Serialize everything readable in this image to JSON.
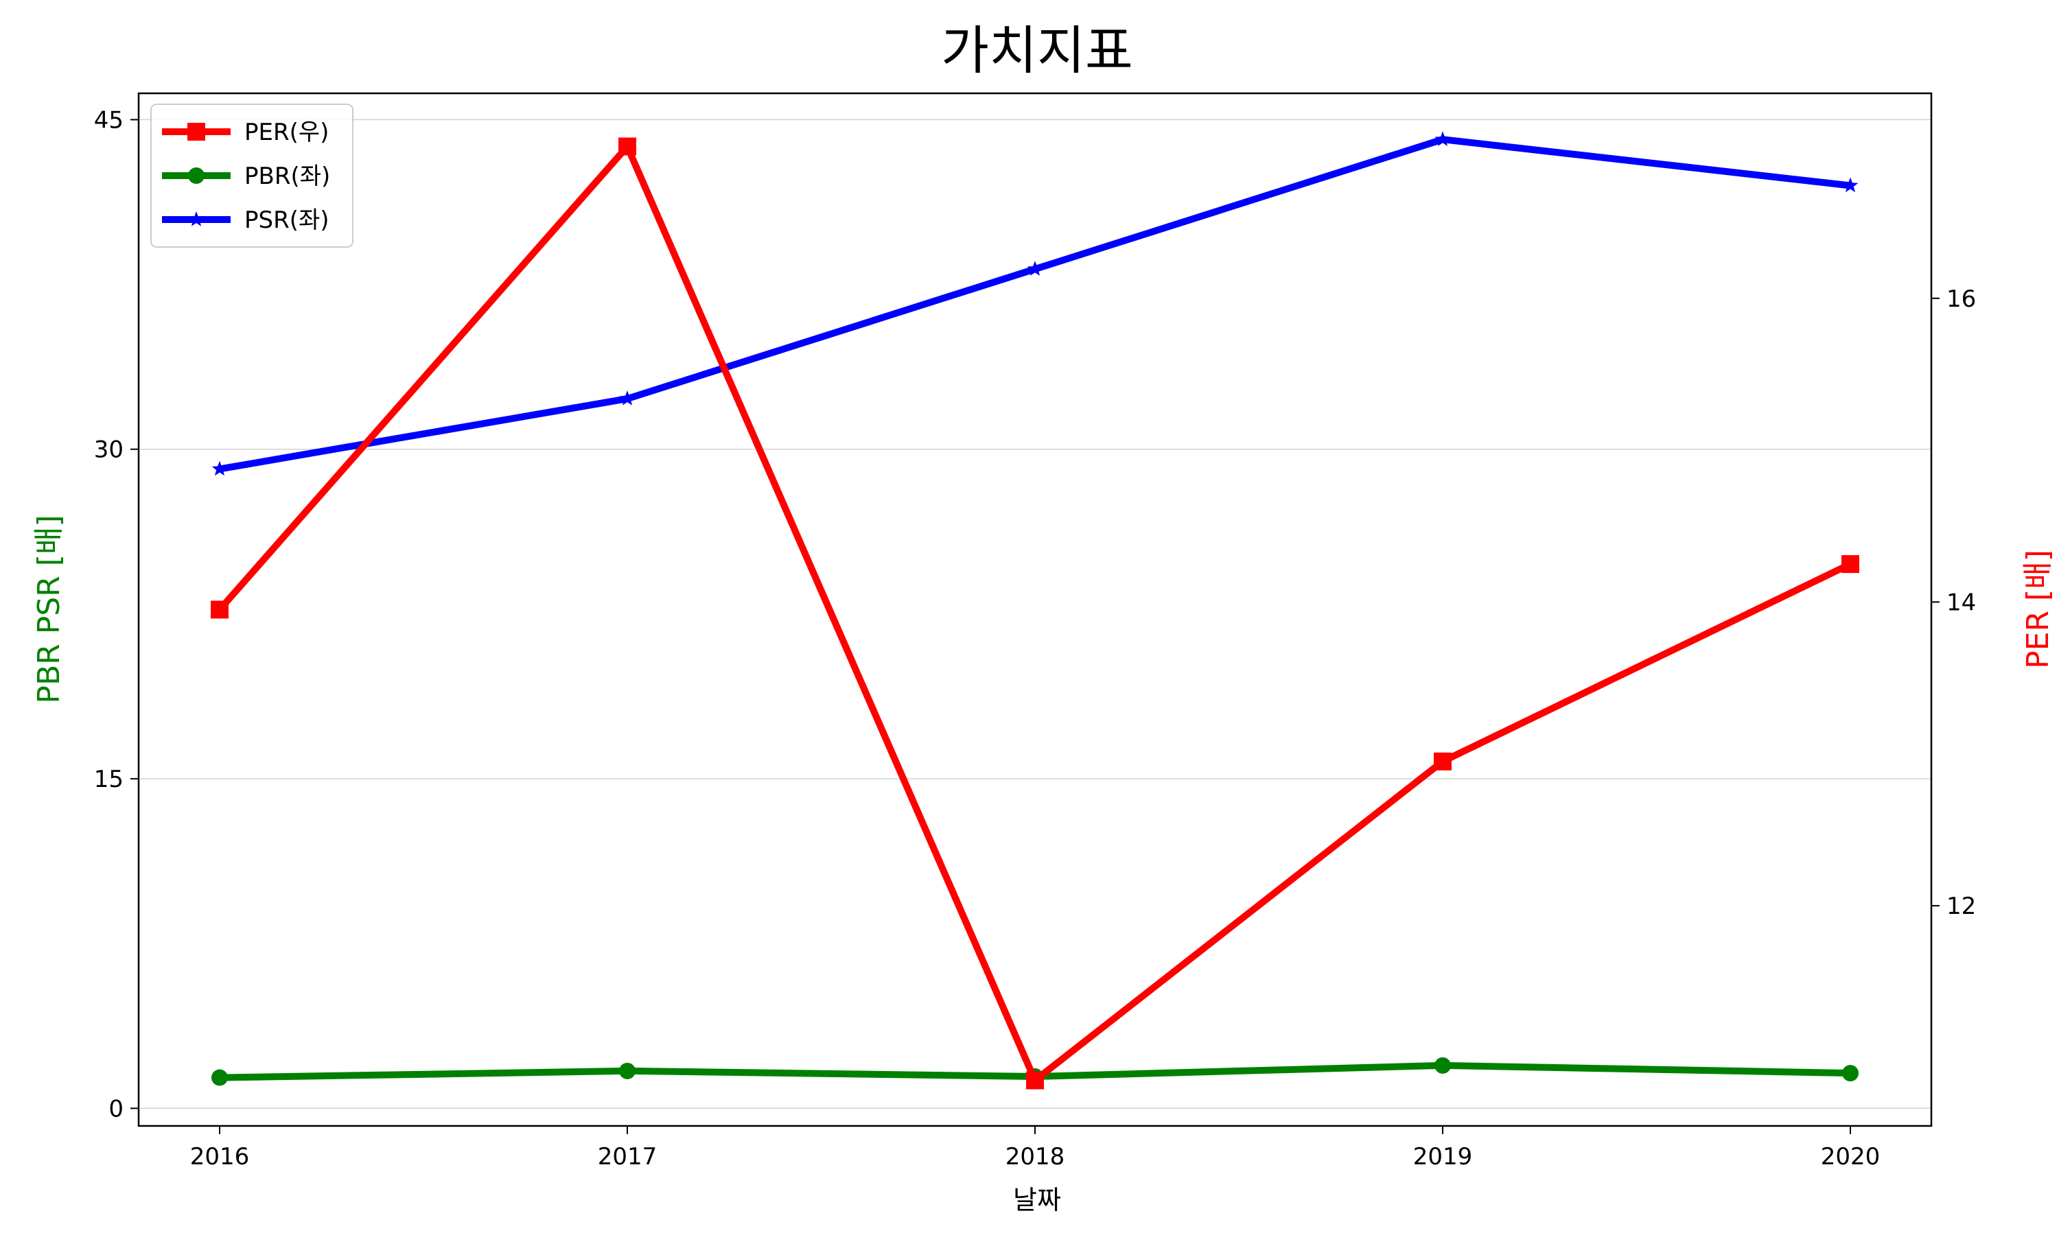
{
  "chart_data": {
    "type": "line",
    "title": "가치지표",
    "xlabel": "날짜",
    "ylabel_left": "PBR PSR [배]",
    "ylabel_right": "PER [배]",
    "x": [
      "2016",
      "2017",
      "2018",
      "2019",
      "2020"
    ],
    "ylim_left": [
      -0.8,
      46.2
    ],
    "ylim_right": [
      10.55,
      17.35
    ],
    "yticks_left": [
      0,
      15,
      30,
      45
    ],
    "yticks_right": [
      12,
      14,
      16
    ],
    "grid": "horizontal, left axis",
    "legend_position": "top-left",
    "series": [
      {
        "name": "PER(우)",
        "axis": "right",
        "color": "#ff0000",
        "marker": "square",
        "values": [
          13.95,
          17.0,
          10.85,
          12.95,
          14.25
        ]
      },
      {
        "name": "PBR(좌)",
        "axis": "left",
        "color": "#008000",
        "marker": "circle",
        "values": [
          1.4,
          1.7,
          1.45,
          1.95,
          1.6
        ]
      },
      {
        "name": "PSR(좌)",
        "axis": "left",
        "color": "#0000ff",
        "marker": "star",
        "values": [
          29.1,
          32.3,
          38.2,
          44.1,
          42.0
        ]
      }
    ]
  }
}
